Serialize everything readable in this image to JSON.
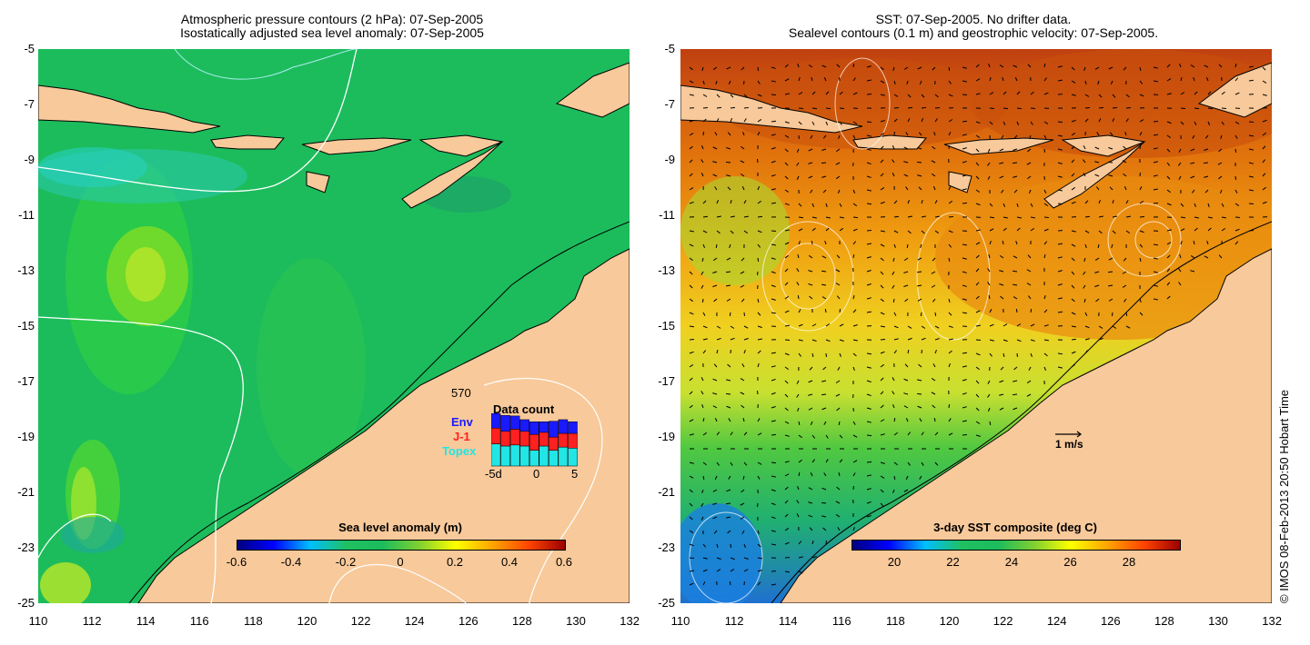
{
  "left_panel": {
    "title_line1": "Atmospheric pressure contours (2 hPa): 07-Sep-2005",
    "title_line2": "Isostatically adjusted sea level anomaly: 07-Sep-2005",
    "colorbar": {
      "title": "Sea level anomaly (m)",
      "ticks": [
        "-0.6",
        "-0.4",
        "-0.2",
        "0",
        "0.2",
        "0.4",
        "0.6"
      ]
    },
    "data_count": {
      "title": "Data count",
      "max_label": "570",
      "legend": [
        {
          "label": "Env",
          "color": "#1a1aff"
        },
        {
          "label": "J-1",
          "color": "#ff2020"
        },
        {
          "label": "Topex",
          "color": "#22e5e5"
        }
      ],
      "x_ticks": [
        "-5d",
        "0",
        "5"
      ],
      "bars": [
        {
          "env": 0.28,
          "j1": 0.3,
          "topex": 0.42
        },
        {
          "env": 0.3,
          "j1": 0.28,
          "topex": 0.38
        },
        {
          "env": 0.25,
          "j1": 0.3,
          "topex": 0.4
        },
        {
          "env": 0.22,
          "j1": 0.28,
          "topex": 0.38
        },
        {
          "env": 0.24,
          "j1": 0.3,
          "topex": 0.3
        },
        {
          "env": 0.2,
          "j1": 0.26,
          "topex": 0.38
        },
        {
          "env": 0.3,
          "j1": 0.25,
          "topex": 0.3
        },
        {
          "env": 0.26,
          "j1": 0.26,
          "topex": 0.36
        },
        {
          "env": 0.22,
          "j1": 0.28,
          "topex": 0.34
        }
      ]
    }
  },
  "right_panel": {
    "title_line1": "SST: 07-Sep-2005. No drifter data.",
    "title_line2": "Sealevel contours (0.1 m) and geostrophic velocity: 07-Sep-2005.",
    "colorbar": {
      "title": "3-day SST composite (deg C)",
      "ticks": [
        "20",
        "22",
        "24",
        "26",
        "28"
      ]
    },
    "velocity_scale_label": "1 m/s"
  },
  "axes": {
    "y_ticks": [
      "-5",
      "-7",
      "-9",
      "-11",
      "-13",
      "-15",
      "-17",
      "-19",
      "-21",
      "-23",
      "-25"
    ],
    "x_ticks": [
      "110",
      "112",
      "114",
      "116",
      "118",
      "120",
      "122",
      "124",
      "126",
      "128",
      "130",
      "132"
    ]
  },
  "credit": "© IMOS 08-Feb-2013 20:50 Hobart Time",
  "colors": {
    "land": "#f8c99a",
    "sea_green": "#19b858",
    "sst_orange": "#e8820c"
  }
}
